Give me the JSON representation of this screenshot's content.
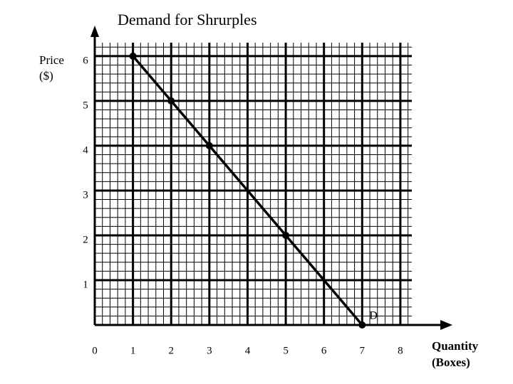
{
  "chart_data": {
    "type": "line",
    "title": "Demand for Shrurples",
    "ylabel": [
      "Price",
      "($)"
    ],
    "xlabel": [
      "Quantity",
      "(Boxes)"
    ],
    "x": [
      1,
      2,
      3,
      5,
      7
    ],
    "series": [
      {
        "name": "D",
        "color": "#000000",
        "values": [
          6,
          5,
          4,
          2,
          0
        ]
      }
    ],
    "xlim": [
      0,
      8.3
    ],
    "ylim": [
      0,
      6.3
    ],
    "xticks": [
      0,
      1,
      2,
      3,
      4,
      5,
      6,
      7,
      8
    ],
    "yticks": [
      1,
      2,
      3,
      4,
      5,
      6
    ],
    "grid": true
  }
}
